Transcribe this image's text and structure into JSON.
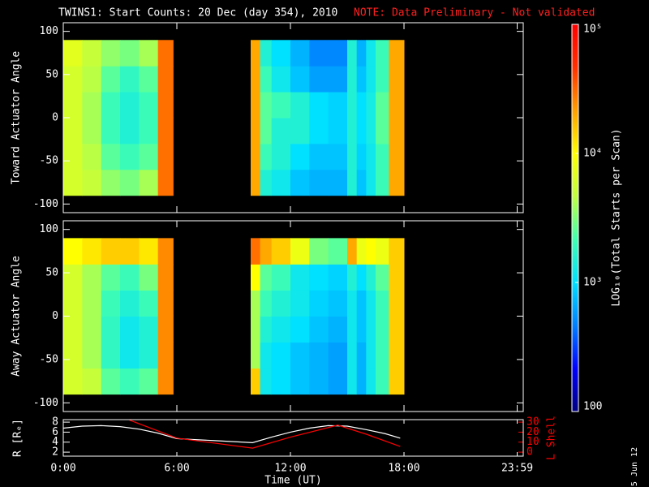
{
  "header": {
    "title": "TWINS1: Start Counts: 20 Dec (day 354), 2010",
    "note": "NOTE: Data Preliminary - Not validated",
    "date_stamp": "5 Jun 12"
  },
  "colorbar": {
    "label": "LOG₁₀(Total Starts per Scan)",
    "clim": [
      100,
      100000
    ],
    "log_scale": true,
    "colormap": [
      "#000080",
      "#0000ff",
      "#0080ff",
      "#00e0ff",
      "#40ffb0",
      "#c0ff40",
      "#ffff00",
      "#ffa000",
      "#ff3000",
      "#ff0000"
    ],
    "ticks": [
      {
        "value": 100000,
        "label": "10⁵"
      },
      {
        "value": 10000,
        "label": "10⁴"
      },
      {
        "value": 1000,
        "label": "10³"
      },
      100
    ]
  },
  "chart_data": [
    {
      "type": "heatmap",
      "ylabel": "Toward Actuator Angle",
      "ylim": [
        -110,
        110
      ],
      "yticks": [
        100,
        50,
        0,
        -50,
        -100
      ],
      "y_edges": [
        -90,
        -60,
        -30,
        0,
        30,
        60,
        90
      ],
      "blocks": [
        {
          "x_edges": [
            0,
            1,
            2,
            3,
            4,
            5,
            5.8
          ],
          "values": [
            [
              6000,
              6000,
              6000,
              6000,
              6000,
              7000
            ],
            [
              5000,
              4500,
              4000,
              4000,
              4500,
              5000
            ],
            [
              3500,
              2500,
              2000,
              2000,
              2500,
              3500
            ],
            [
              3000,
              2000,
              1500,
              1500,
              1800,
              3000
            ],
            [
              4000,
              2500,
              2000,
              2000,
              2500,
              4000
            ],
            [
              30000,
              30000,
              30000,
              30000,
              30000,
              30000
            ]
          ]
        },
        {
          "x_edges": [
            9.9,
            10.4,
            11,
            12,
            13,
            14,
            15,
            15.5,
            16,
            16.5,
            17.2,
            18
          ],
          "values": [
            [
              20000,
              20000,
              20000,
              20000,
              20000,
              20000
            ],
            [
              1500,
              2000,
              2500,
              2500,
              2000,
              1500
            ],
            [
              1200,
              1500,
              1500,
              2000,
              1200,
              1000
            ],
            [
              800,
              1000,
              1500,
              1500,
              800,
              700
            ],
            [
              700,
              800,
              1000,
              1000,
              600,
              500
            ],
            [
              700,
              800,
              900,
              900,
              600,
              500
            ],
            [
              1500,
              1500,
              1500,
              1500,
              1500,
              1500
            ],
            [
              800,
              900,
              1000,
              1000,
              800,
              700
            ],
            [
              1200,
              1200,
              1300,
              1300,
              1200,
              1200
            ],
            [
              2000,
              2000,
              2500,
              2500,
              2000,
              2000
            ],
            [
              20000,
              20000,
              20000,
              20000,
              20000,
              20000
            ]
          ]
        }
      ]
    },
    {
      "type": "heatmap",
      "ylabel": "Away Actuator Angle",
      "ylim": [
        -110,
        110
      ],
      "yticks": [
        100,
        50,
        0,
        -50,
        -100
      ],
      "y_edges": [
        -90,
        -60,
        -30,
        0,
        30,
        60,
        90
      ],
      "blocks": [
        {
          "x_edges": [
            0,
            1,
            2,
            3,
            4,
            5,
            5.8
          ],
          "values": [
            [
              6000,
              6000,
              6000,
              6000,
              6000,
              10000
            ],
            [
              5000,
              4000,
              4000,
              4000,
              4000,
              12000
            ],
            [
              2500,
              1800,
              1800,
              2000,
              2500,
              15000
            ],
            [
              2000,
              1200,
              1200,
              1500,
              2000,
              15000
            ],
            [
              2500,
              1500,
              1500,
              2000,
              3000,
              12000
            ],
            [
              25000,
              25000,
              25000,
              25000,
              25000,
              25000
            ]
          ]
        },
        {
          "x_edges": [
            9.9,
            10.4,
            11,
            12,
            13,
            14,
            15,
            15.5,
            16,
            16.5,
            17.2,
            18
          ],
          "values": [
            [
              15000,
              4000,
              4000,
              4000,
              10000,
              30000
            ],
            [
              1200,
              1200,
              1500,
              2000,
              2500,
              20000
            ],
            [
              1000,
              1000,
              1200,
              1500,
              2000,
              15000
            ],
            [
              800,
              800,
              1000,
              1200,
              1200,
              8000
            ],
            [
              700,
              700,
              800,
              900,
              1000,
              3000
            ],
            [
              600,
              600,
              700,
              800,
              900,
              2500
            ],
            [
              1200,
              1200,
              1200,
              1200,
              1500,
              20000
            ],
            [
              700,
              700,
              800,
              800,
              1000,
              8000
            ],
            [
              1200,
              1200,
              1200,
              1200,
              1500,
              10000
            ],
            [
              2000,
              2000,
              2000,
              2000,
              2500,
              8000
            ],
            [
              15000,
              15000,
              15000,
              15000,
              15000,
              15000
            ]
          ]
        }
      ]
    },
    {
      "type": "line",
      "xlabel": "Time (UT)",
      "xlim": [
        0,
        24.3
      ],
      "xticks": [
        {
          "value": 0,
          "label": "0:00"
        },
        {
          "value": 6,
          "label": "6:00"
        },
        {
          "value": 12,
          "label": "12:00"
        },
        {
          "value": 18,
          "label": "18:00"
        },
        {
          "value": 23.98,
          "label": "23:59"
        }
      ],
      "ylabel": "R [Rₑ]",
      "ylim": [
        1.2,
        8.5
      ],
      "yticks": [
        2,
        4,
        6,
        8
      ],
      "y2label": "L Shell",
      "y2lim": [
        -4,
        32.5
      ],
      "y2ticks": [
        0,
        10,
        20,
        30
      ],
      "y2color": "#ff0000",
      "series": [
        {
          "color": "#ffffff",
          "x": [
            0,
            1,
            2,
            3,
            4,
            5,
            6,
            8,
            10,
            11,
            12,
            13,
            14,
            15,
            16,
            17,
            17.8
          ],
          "values": [
            6.8,
            7.2,
            7.3,
            7.1,
            6.6,
            5.8,
            4.7,
            4.3,
            3.9,
            5.0,
            6.0,
            6.8,
            7.3,
            7.2,
            6.5,
            5.7,
            4.8
          ]
        },
        {
          "color": "#ff0000",
          "axis": "y2",
          "x": [
            3.5,
            6,
            10,
            12,
            14.5,
            16,
            17.8
          ],
          "values": [
            32,
            14,
            4,
            15,
            27,
            18,
            5.7
          ]
        }
      ]
    }
  ]
}
